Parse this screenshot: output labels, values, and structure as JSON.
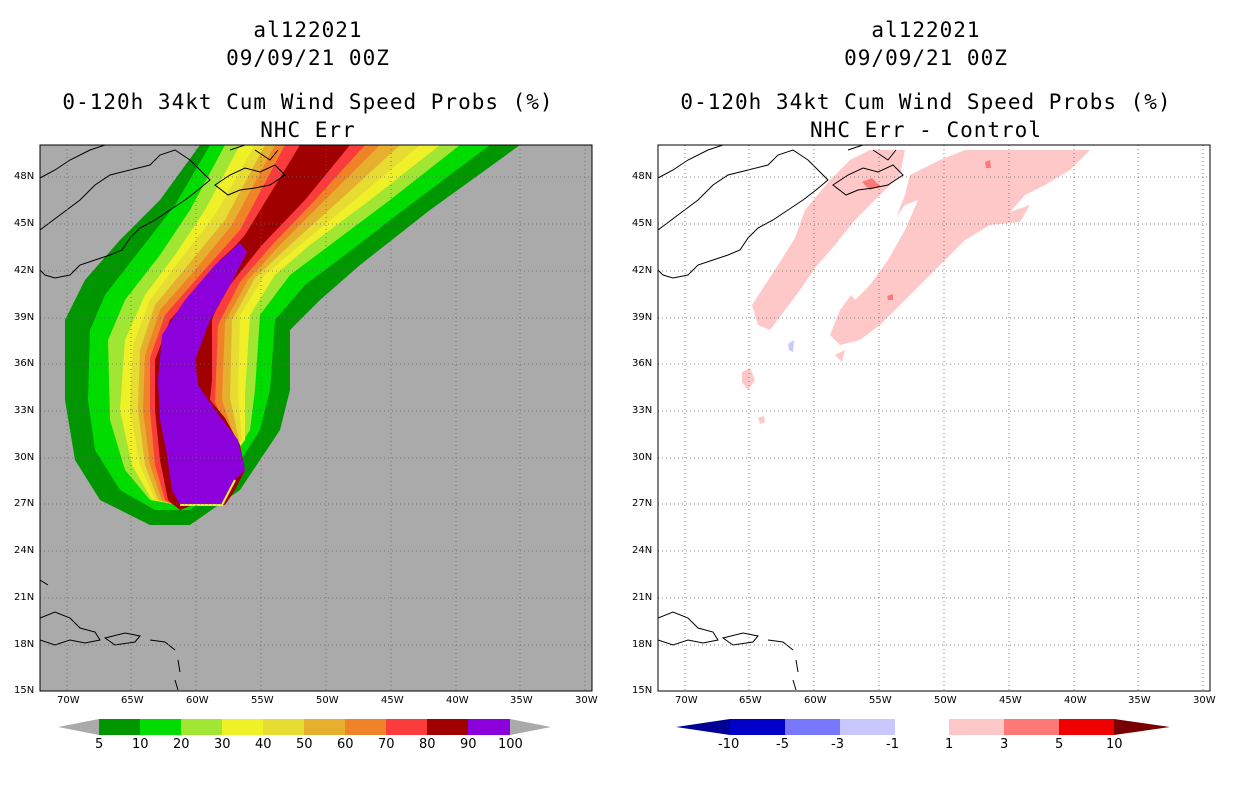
{
  "left": {
    "storm_id": "al122021",
    "datetime": "09/09/21 00Z",
    "title": "0-120h 34kt Cum Wind Speed Probs (%)",
    "subtitle": "NHC Err",
    "lat_labels": [
      "48N",
      "45N",
      "42N",
      "39N",
      "36N",
      "33N",
      "30N",
      "27N",
      "24N",
      "21N",
      "18N",
      "15N"
    ],
    "lon_labels": [
      "70W",
      "65W",
      "60W",
      "55W",
      "50W",
      "45W",
      "40W",
      "35W",
      "30W"
    ],
    "colorbar_labels": [
      "5",
      "10",
      "20",
      "30",
      "40",
      "50",
      "60",
      "70",
      "80",
      "90",
      "100"
    ],
    "colorbar_colors": [
      "#009600",
      "#00dc00",
      "#a0e632",
      "#f0f028",
      "#e6dc32",
      "#e6af2d",
      "#f08228",
      "#fa3c3c",
      "#a00000",
      "#8c00dc"
    ],
    "background_color": "#aaaaaa"
  },
  "right": {
    "storm_id": "al122021",
    "datetime": "09/09/21 00Z",
    "title": "0-120h 34kt Cum Wind Speed Probs (%)",
    "subtitle": "NHC Err - Control",
    "lat_labels": [
      "48N",
      "45N",
      "42N",
      "39N",
      "36N",
      "33N",
      "30N",
      "27N",
      "24N",
      "21N",
      "18N",
      "15N"
    ],
    "lon_labels": [
      "70W",
      "65W",
      "60W",
      "55W",
      "50W",
      "45W",
      "40W",
      "35W",
      "30W"
    ],
    "colorbar_labels": [
      "-10",
      "-5",
      "-3",
      "-1",
      "1",
      "3",
      "5",
      "10"
    ],
    "colorbar_colors": [
      "#0000c8",
      "#7878ff",
      "#c8c8ff",
      "#ffffff",
      "#ffc8c8",
      "#ff7878",
      "#f00000"
    ],
    "colorbar_end_colors": [
      "#000096",
      "#780000"
    ]
  }
}
